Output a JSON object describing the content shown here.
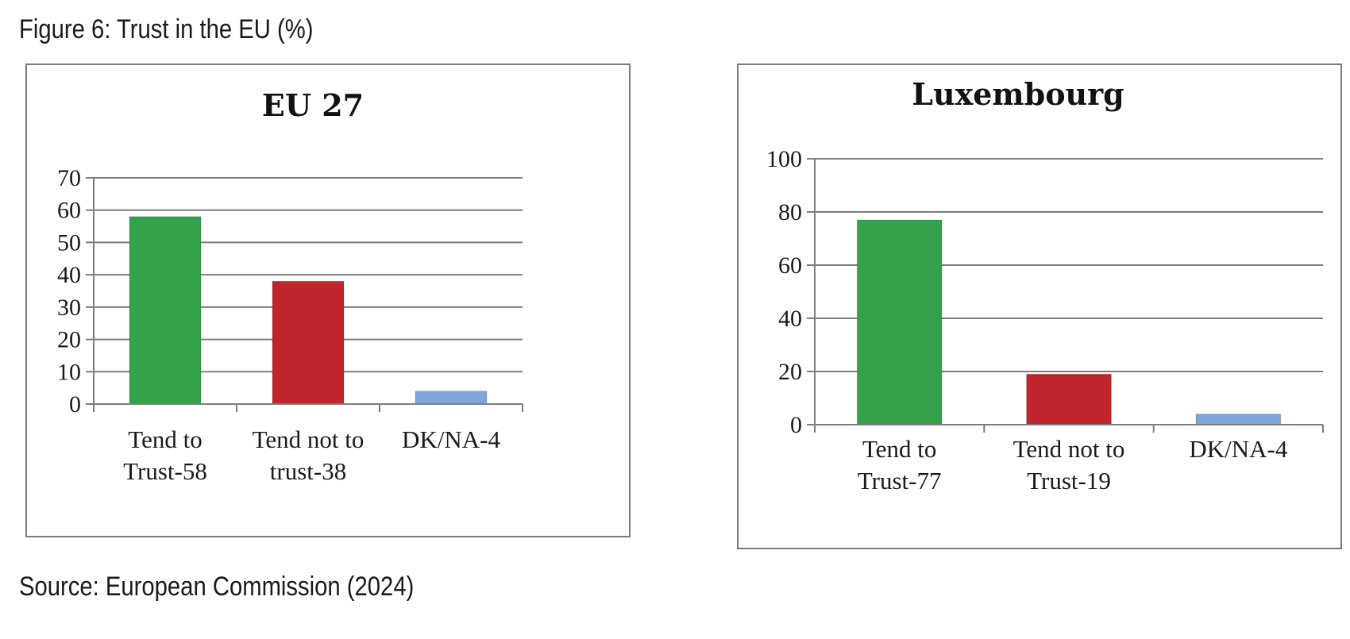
{
  "figure": {
    "title": "Figure 6: Trust in the EU (%)",
    "source": "Source: European Commission (2024)"
  },
  "chart_data": [
    {
      "type": "bar",
      "title": "EU 27",
      "categories": [
        [
          "Tend to",
          "Trust-58"
        ],
        [
          "Tend not to",
          "trust-38"
        ],
        [
          "DK/NA-4"
        ]
      ],
      "values": [
        58,
        38,
        4
      ],
      "colors": [
        "#34a24a",
        "#c0242c",
        "#7ea6d8"
      ],
      "yticks": [
        0,
        10,
        20,
        30,
        40,
        50,
        60,
        70
      ],
      "ylim": [
        0,
        70
      ],
      "grid": true,
      "xlabel": "",
      "ylabel": ""
    },
    {
      "type": "bar",
      "title": "Luxembourg",
      "categories": [
        [
          "Tend to",
          "Trust-77"
        ],
        [
          "Tend not to",
          "Trust-19"
        ],
        [
          "DK/NA-4"
        ]
      ],
      "values": [
        77,
        19,
        4
      ],
      "colors": [
        "#34a24a",
        "#c0242c",
        "#7ea6d8"
      ],
      "yticks": [
        0,
        20,
        40,
        60,
        80,
        100
      ],
      "ylim": [
        0,
        100
      ],
      "grid": true,
      "xlabel": "",
      "ylabel": ""
    }
  ]
}
